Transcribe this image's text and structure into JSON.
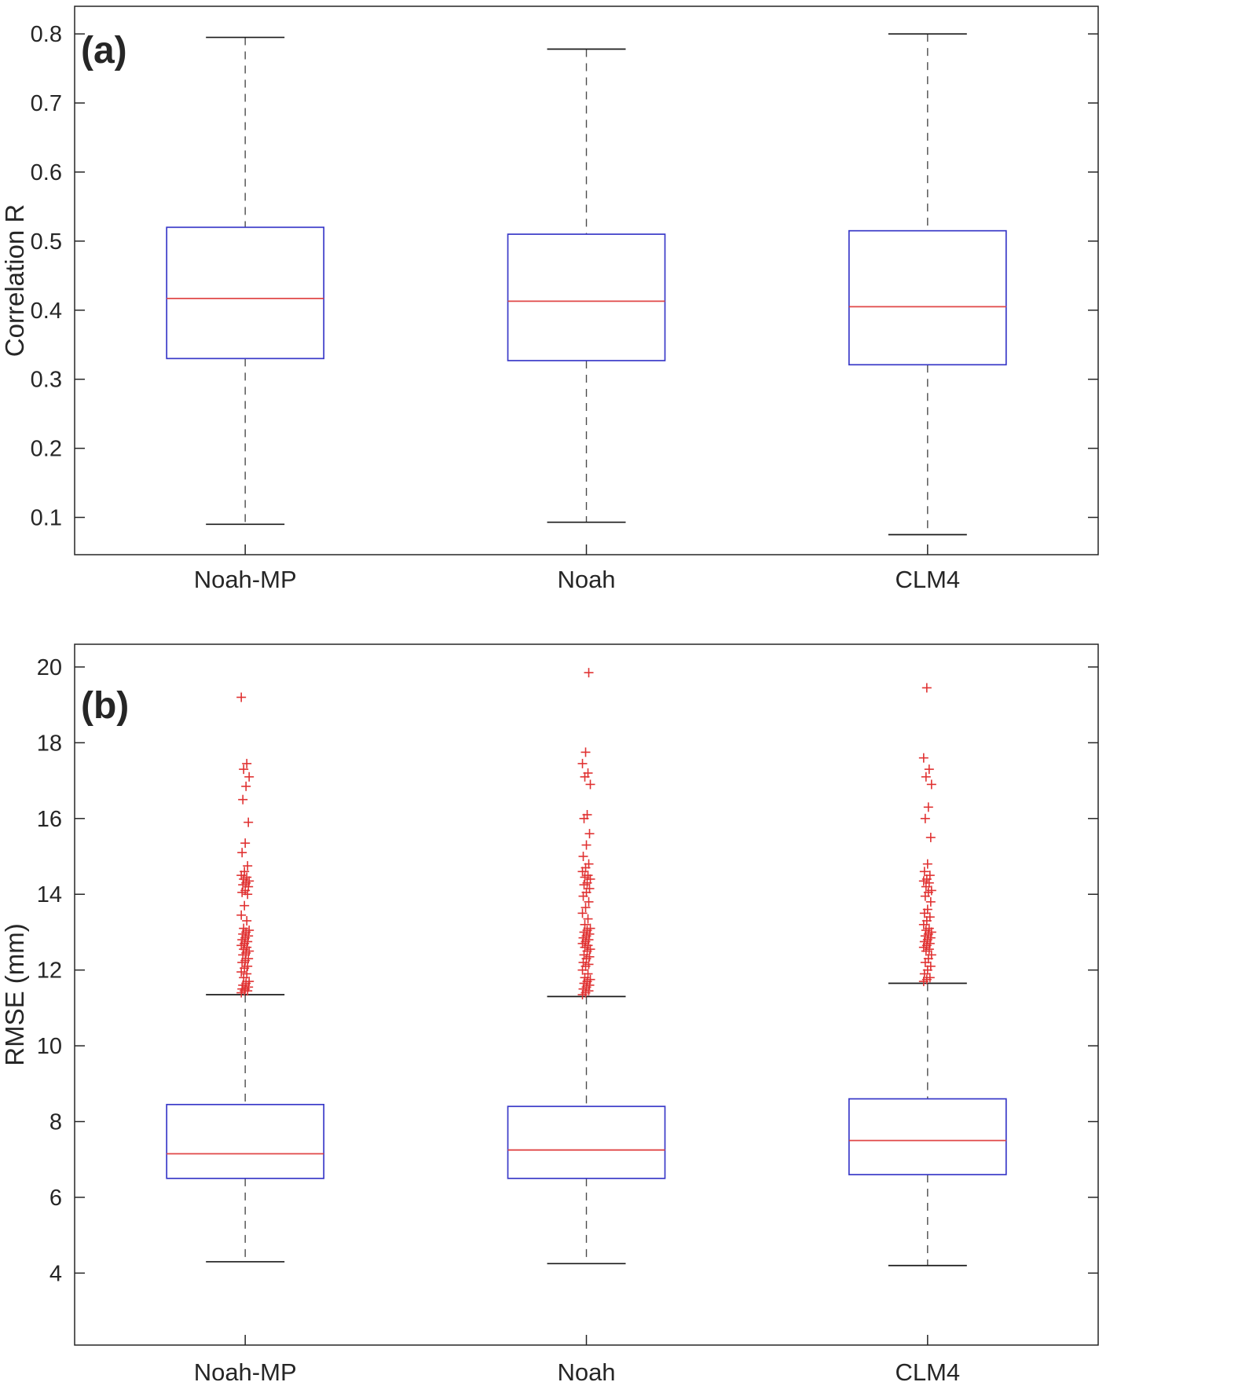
{
  "page": {
    "background": "#ffffff"
  },
  "colors": {
    "box_edge": "#3a3ac8",
    "median": "#e04848",
    "outlier": "#e03232",
    "whisker": "#4d4d4d",
    "cap": "#1a1a1a",
    "axis": "#262626",
    "text": "#262626"
  },
  "chart_data": [
    {
      "type": "boxplot",
      "panel_label": "(a)",
      "title": "",
      "xlabel": "",
      "ylabel": "Correlation R",
      "categories": [
        "Noah-MP",
        "Noah",
        "CLM4"
      ],
      "yticks": [
        "0.1",
        "0.2",
        "0.3",
        "0.4",
        "0.5",
        "0.6",
        "0.7",
        "0.8"
      ],
      "ylim": [
        0.046,
        0.84
      ],
      "grid": false,
      "legend": "none",
      "boxes": [
        {
          "category": "Noah-MP",
          "whisker_low": 0.09,
          "q1": 0.33,
          "median": 0.417,
          "q3": 0.52,
          "whisker_high": 0.795,
          "outliers": []
        },
        {
          "category": "Noah",
          "whisker_low": 0.093,
          "q1": 0.327,
          "median": 0.413,
          "q3": 0.51,
          "whisker_high": 0.778,
          "outliers": []
        },
        {
          "category": "CLM4",
          "whisker_low": 0.075,
          "q1": 0.321,
          "median": 0.405,
          "q3": 0.515,
          "whisker_high": 0.8,
          "outliers": []
        }
      ]
    },
    {
      "type": "boxplot",
      "panel_label": "(b)",
      "title": "",
      "xlabel": "",
      "ylabel": "RMSE (mm)",
      "categories": [
        "Noah-MP",
        "Noah",
        "CLM4"
      ],
      "yticks": [
        "4",
        "6",
        "8",
        "10",
        "12",
        "14",
        "16",
        "18",
        "20"
      ],
      "ylim": [
        2.1,
        20.6
      ],
      "grid": false,
      "legend": "none",
      "boxes": [
        {
          "category": "Noah-MP",
          "whisker_low": 4.3,
          "q1": 6.5,
          "median": 7.15,
          "q3": 8.45,
          "whisker_high": 11.35,
          "outliers": [
            11.4,
            11.45,
            11.45,
            11.5,
            11.5,
            11.55,
            11.6,
            11.65,
            11.7,
            11.8,
            11.9,
            11.95,
            12.05,
            12.1,
            12.2,
            12.25,
            12.3,
            12.4,
            12.45,
            12.5,
            12.55,
            12.6,
            12.65,
            12.7,
            12.75,
            12.8,
            12.85,
            12.9,
            12.95,
            13.0,
            13.05,
            13.1,
            13.3,
            13.45,
            13.7,
            14.0,
            14.05,
            14.1,
            14.2,
            14.25,
            14.3,
            14.35,
            14.4,
            14.45,
            14.5,
            14.6,
            14.75,
            15.1,
            15.35,
            15.9,
            16.5,
            16.85,
            17.1,
            17.3,
            17.45,
            19.2
          ]
        },
        {
          "category": "Noah",
          "whisker_low": 4.25,
          "q1": 6.5,
          "median": 7.25,
          "q3": 8.4,
          "whisker_high": 11.3,
          "outliers": [
            11.35,
            11.4,
            11.45,
            11.5,
            11.55,
            11.6,
            11.65,
            11.7,
            11.75,
            11.8,
            11.9,
            12.0,
            12.1,
            12.15,
            12.2,
            12.3,
            12.35,
            12.4,
            12.5,
            12.55,
            12.6,
            12.65,
            12.7,
            12.75,
            12.8,
            12.85,
            12.9,
            12.95,
            13.0,
            13.05,
            13.1,
            13.2,
            13.35,
            13.5,
            13.65,
            13.8,
            13.95,
            14.05,
            14.15,
            14.25,
            14.3,
            14.4,
            14.45,
            14.5,
            14.6,
            14.7,
            14.8,
            15.0,
            15.3,
            15.6,
            16.0,
            16.1,
            16.9,
            17.1,
            17.2,
            17.45,
            17.75,
            19.85
          ]
        },
        {
          "category": "CLM4",
          "whisker_low": 4.2,
          "q1": 6.6,
          "median": 7.5,
          "q3": 8.6,
          "whisker_high": 11.65,
          "outliers": [
            11.7,
            11.75,
            11.8,
            11.9,
            12.0,
            12.1,
            12.2,
            12.3,
            12.4,
            12.5,
            12.55,
            12.6,
            12.65,
            12.7,
            12.75,
            12.8,
            12.85,
            12.9,
            12.95,
            13.0,
            13.05,
            13.1,
            13.2,
            13.3,
            13.4,
            13.5,
            13.6,
            13.8,
            13.95,
            14.05,
            14.1,
            14.2,
            14.3,
            14.35,
            14.4,
            14.5,
            14.6,
            14.8,
            15.5,
            16.0,
            16.3,
            16.9,
            17.1,
            17.3,
            17.6,
            19.45
          ]
        }
      ]
    }
  ]
}
